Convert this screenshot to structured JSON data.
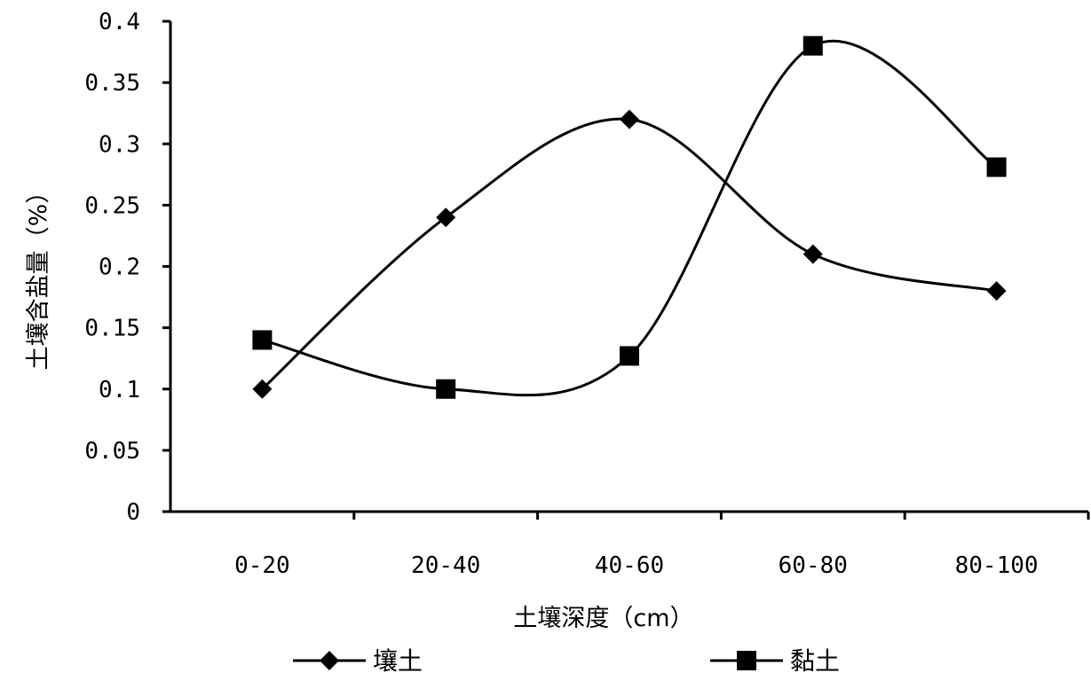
{
  "chart_data": {
    "type": "line",
    "title": "",
    "xlabel": "土壤深度（cm）",
    "ylabel": "土壤含盐量（%）",
    "categories": [
      "0-20",
      "20-40",
      "40-60",
      "60-80",
      "80-100"
    ],
    "yticks": [
      "0",
      "0.05",
      "0.1",
      "0.15",
      "0.2",
      "0.25",
      "0.3",
      "0.35",
      "0.4"
    ],
    "ylim": [
      0,
      0.4
    ],
    "grid": false,
    "smooth": true,
    "legend_position": "bottom",
    "series": [
      {
        "name": "壤土",
        "marker": "diamond",
        "color": "#000000",
        "values": [
          0.1,
          0.24,
          0.32,
          0.21,
          0.18
        ]
      },
      {
        "name": "黏土",
        "marker": "square",
        "color": "#000000",
        "values": [
          0.14,
          0.1,
          0.127,
          0.38,
          0.281
        ]
      }
    ]
  }
}
